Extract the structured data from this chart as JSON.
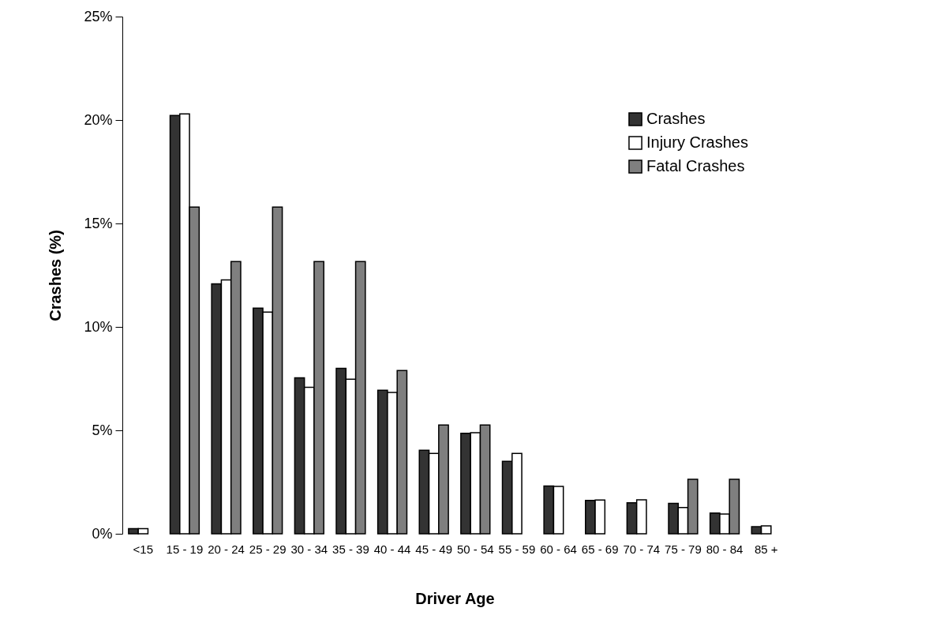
{
  "chart_data": {
    "type": "bar",
    "xlabel": "Driver Age",
    "ylabel": "Crashes (%)",
    "categories": [
      "<15",
      "15 - 19",
      "20 - 24",
      "25 - 29",
      "30 - 34",
      "35 - 39",
      "40 - 44",
      "45 - 49",
      "50 - 54",
      "55 - 59",
      "60 - 64",
      "65 - 69",
      "70 - 74",
      "75 - 79",
      "80 - 84",
      "85 +"
    ],
    "series": [
      {
        "name": "Crashes",
        "color": "#333333",
        "values": [
          0.25,
          20.22,
          12.08,
          10.91,
          7.54,
          8.0,
          6.94,
          4.04,
          4.86,
          3.5,
          2.31,
          1.61,
          1.5,
          1.47,
          1.0,
          0.34
        ]
      },
      {
        "name": "Injury Crashes",
        "color": "#ffffff",
        "values": [
          0.25,
          20.3,
          12.27,
          10.72,
          7.08,
          7.47,
          6.83,
          3.88,
          4.89,
          3.88,
          2.29,
          1.63,
          1.64,
          1.27,
          0.95,
          0.38
        ]
      },
      {
        "name": "Fatal Crashes",
        "color": "#7f7f7f",
        "values": [
          null,
          15.79,
          13.16,
          15.79,
          13.16,
          13.16,
          7.89,
          5.26,
          5.26,
          null,
          null,
          null,
          null,
          2.63,
          2.63,
          null
        ]
      }
    ],
    "ylim": [
      0,
      25
    ],
    "yticks": [
      {
        "value": 0,
        "label": "0%"
      },
      {
        "value": 5,
        "label": "5%"
      },
      {
        "value": 10,
        "label": "10%"
      },
      {
        "value": 15,
        "label": "15%"
      },
      {
        "value": 20,
        "label": "20%"
      },
      {
        "value": 25,
        "label": "25%"
      }
    ],
    "grid": false,
    "legend": "top right"
  }
}
